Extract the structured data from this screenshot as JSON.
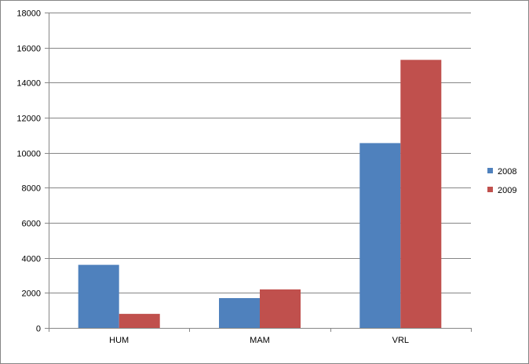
{
  "chart_data": {
    "type": "bar",
    "title": "",
    "xlabel": "",
    "ylabel": "",
    "categories": [
      "HUM",
      "MAM",
      "VRL"
    ],
    "series": [
      {
        "name": "2008",
        "color": "#4F81BD",
        "values": [
          3600,
          1700,
          10550
        ]
      },
      {
        "name": "2009",
        "color": "#C0504D",
        "values": [
          800,
          2200,
          15300
        ]
      }
    ],
    "ylim": [
      0,
      18000
    ],
    "yticks": [
      0,
      2000,
      4000,
      6000,
      8000,
      10000,
      12000,
      14000,
      16000,
      18000
    ],
    "ytick_labels": [
      "0",
      "2000",
      "4000",
      "6000",
      "8000",
      "10000",
      "12000",
      "14000",
      "16000",
      "18000"
    ],
    "grid": true,
    "legend": "right"
  }
}
